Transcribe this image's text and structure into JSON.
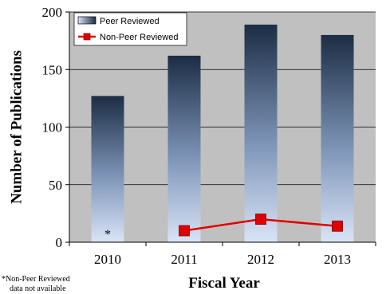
{
  "chart_data": {
    "type": "bar",
    "categories": [
      "2010",
      "2011",
      "2012",
      "2013"
    ],
    "series": [
      {
        "name": "Peer Reviewed",
        "kind": "bar",
        "values": [
          127,
          162,
          189,
          180
        ]
      },
      {
        "name": "Non-Peer Reviewed",
        "kind": "line",
        "values": [
          null,
          10,
          20,
          14
        ],
        "color": "#e00000",
        "marker": "square"
      }
    ],
    "title": "",
    "xlabel": "Fiscal Year",
    "ylabel": "Number of Publications",
    "ylim": [
      0,
      200
    ],
    "yticks": [
      0,
      50,
      100,
      150,
      200
    ],
    "grid": true,
    "legend": "top-left",
    "plot_background": "#c0c0c0",
    "bar_gradient_top": "#1c2d44",
    "bar_gradient_bottom": "#d9e4f6",
    "annotation": "*",
    "footnote": [
      "*Non-Peer Reviewed",
      "data not available"
    ]
  }
}
